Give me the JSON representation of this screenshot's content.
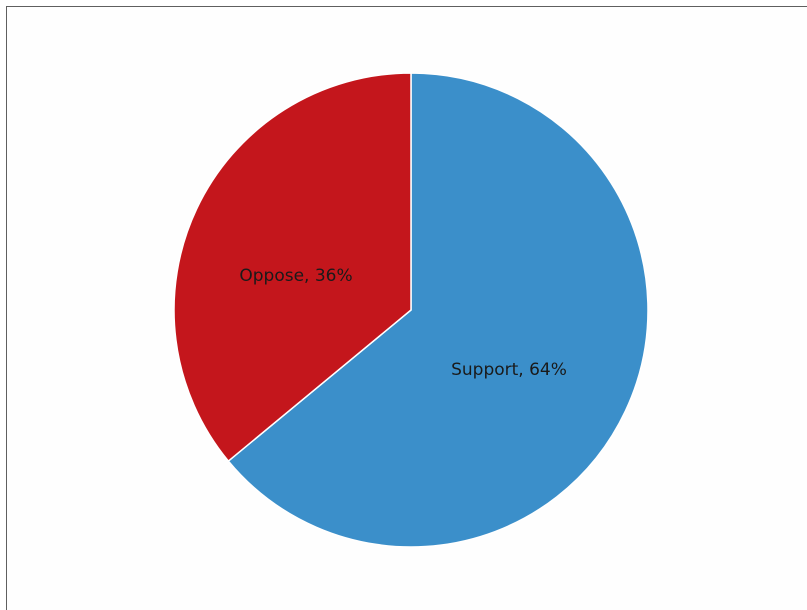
{
  "chart_data": {
    "type": "pie",
    "categories": [
      "Support",
      "Oppose"
    ],
    "values": [
      64,
      36
    ],
    "labels": [
      "Support, 64%",
      "Oppose, 36%"
    ],
    "colors": [
      "#3b8fca",
      "#c4161c"
    ],
    "title": "",
    "legend": "none",
    "start_angle_deg": 0,
    "direction": "clockwise"
  }
}
